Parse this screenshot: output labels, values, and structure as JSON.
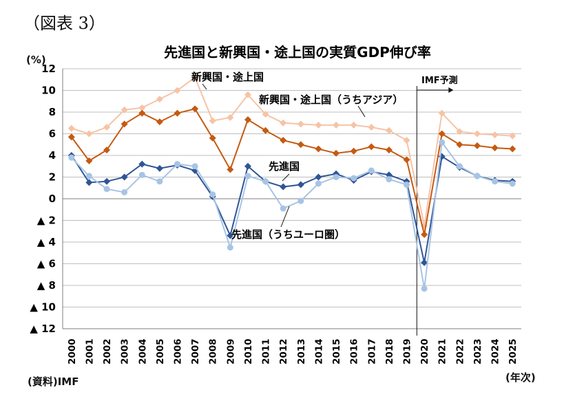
{
  "figure_label": "（図表 3）",
  "unit_label": "(%)",
  "source": "(資料)IMF",
  "x_unit": "(年次)",
  "chart_data": {
    "type": "line",
    "title": "先進国と新興国・途上国の実質GDP伸び率",
    "x": [
      "2000",
      "2001",
      "2002",
      "2003",
      "2004",
      "2005",
      "2006",
      "2007",
      "2008",
      "2009",
      "2010",
      "2011",
      "2012",
      "2013",
      "2014",
      "2015",
      "2016",
      "2017",
      "2018",
      "2019",
      "2020",
      "2021",
      "2022",
      "2023",
      "2024",
      "2025"
    ],
    "ylim": [
      -12,
      12
    ],
    "yticks": [
      12,
      10,
      8,
      6,
      4,
      2,
      0,
      -2,
      -4,
      -6,
      -8,
      -10,
      -12
    ],
    "ytick_labels": [
      "12",
      "10",
      "8",
      "6",
      "4",
      "2",
      "0",
      "▲ 2",
      "▲ 4",
      "▲ 6",
      "▲ 8",
      "▲ 10",
      "▲ 12"
    ],
    "grid": true,
    "projection_start": "2020",
    "projection_label": "IMF予測",
    "series": [
      {
        "name": "新興国・途上国（うちアジア）",
        "color": "#F6C3A6",
        "marker": "diamond",
        "values": [
          6.5,
          6.0,
          6.6,
          8.2,
          8.4,
          9.2,
          10.0,
          11.2,
          7.2,
          7.5,
          9.6,
          7.8,
          7.0,
          6.9,
          6.8,
          6.8,
          6.8,
          6.6,
          6.3,
          5.4,
          -2.5,
          7.9,
          6.2,
          6.0,
          5.9,
          5.8
        ]
      },
      {
        "name": "新興国・途上国",
        "color": "#C55A11",
        "marker": "diamond",
        "values": [
          5.7,
          3.5,
          4.5,
          6.9,
          7.9,
          7.1,
          7.9,
          8.3,
          5.6,
          2.7,
          7.3,
          6.3,
          5.4,
          5.0,
          4.6,
          4.2,
          4.4,
          4.8,
          4.5,
          3.6,
          -3.3,
          6.0,
          5.0,
          4.9,
          4.7,
          4.6
        ]
      },
      {
        "name": "先進国",
        "color": "#2F5597",
        "marker": "diamond",
        "values": [
          4.0,
          1.5,
          1.6,
          2.0,
          3.2,
          2.8,
          3.1,
          2.6,
          0.2,
          -3.4,
          3.0,
          1.6,
          1.1,
          1.3,
          2.0,
          2.3,
          1.7,
          2.5,
          2.2,
          1.6,
          -5.9,
          3.9,
          2.9,
          2.1,
          1.7,
          1.6
        ]
      },
      {
        "name": "先進国（うちユーロ圏）",
        "color": "#A7C4E4",
        "marker": "circle",
        "values": [
          3.8,
          2.1,
          0.9,
          0.6,
          2.2,
          1.6,
          3.2,
          3.0,
          0.4,
          -4.5,
          2.1,
          1.6,
          -0.9,
          -0.2,
          1.4,
          2.0,
          1.9,
          2.6,
          1.8,
          1.3,
          -8.3,
          5.2,
          3.0,
          2.1,
          1.6,
          1.4
        ]
      }
    ],
    "annotations": {
      "emerging": "新興国・途上国",
      "emerging_asia": "新興国・途上国（うちアジア）",
      "advanced": "先進国",
      "euro": "先進国（うちユーロ圏）"
    }
  }
}
